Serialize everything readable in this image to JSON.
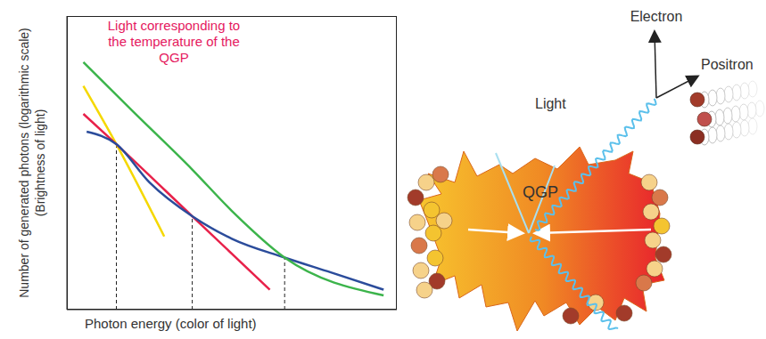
{
  "chart_data": {
    "type": "line",
    "log": "y",
    "tick_labels": false,
    "grid": false,
    "xlabel": "Photon energy (color of light)",
    "ylabel": "Number of generated photons (logarithmic scale) (Brightness of light)",
    "annotation": "Light corresponding to the temperature of the QGP",
    "xlim": [
      0,
      10
    ],
    "ylim": [
      1,
      1000
    ],
    "series": [
      {
        "color": "#f5d800",
        "x": [
          0.5,
          1.5,
          2.95
        ],
        "values": [
          193,
          49,
          5.6
        ]
      },
      {
        "color": "#e8214a",
        "x": [
          0.5,
          1.5,
          3.8,
          6.15
        ],
        "values": [
          100,
          49,
          9.0,
          1.6
        ]
      },
      {
        "color": "#2b4c9b",
        "x": [
          0.6,
          1.5,
          2.5,
          3.8,
          5,
          6.6,
          8,
          9.6
        ],
        "values": [
          65.8,
          49,
          20,
          9.0,
          5.3,
          3.4,
          2.4,
          1.6
        ]
      },
      {
        "color": "#3cb44b",
        "x": [
          0.5,
          2,
          3.8,
          5,
          6.6,
          9.6
        ],
        "values": [
          337,
          106,
          27,
          10.2,
          3.4,
          1.4
        ]
      }
    ],
    "vlines": [
      {
        "x": 1.5,
        "y": 49
      },
      {
        "x": 3.8,
        "y": 9.0
      },
      {
        "x": 6.6,
        "y": 3.4
      }
    ]
  },
  "diagram": {
    "labels": {
      "electron": "Electron",
      "positron": "Positron",
      "light": "Light",
      "qgp": "QGP"
    }
  }
}
